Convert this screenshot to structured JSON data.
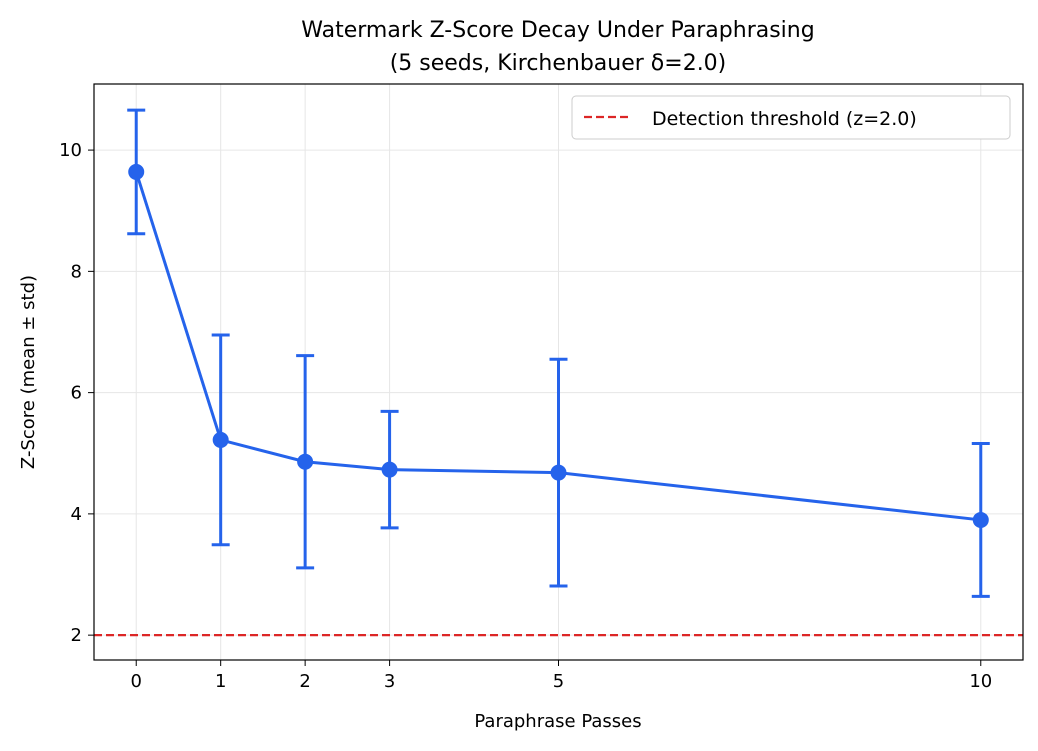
{
  "chart_data": {
    "type": "line",
    "title_line1": "Watermark Z-Score Decay Under Paraphrasing",
    "title_line2": "(5 seeds, Kirchenbauer δ=2.0)",
    "xlabel": "Paraphrase Passes",
    "ylabel": "Z-Score (mean ± std)",
    "x": [
      0,
      1,
      2,
      3,
      5,
      10
    ],
    "x_tick_labels": [
      "0",
      "1",
      "2",
      "3",
      "5",
      "10"
    ],
    "y_ticks": [
      2,
      4,
      6,
      8,
      10
    ],
    "y_tick_labels": [
      "2",
      "4",
      "6",
      "8",
      "10"
    ],
    "xlim": [
      -0.5,
      10.5
    ],
    "ylim": [
      1.59,
      11.09
    ],
    "grid": true,
    "series": [
      {
        "mean": [
          9.64,
          5.22,
          4.86,
          4.73,
          4.68,
          3.9
        ],
        "std": [
          1.02,
          1.73,
          1.75,
          0.96,
          1.87,
          1.26
        ],
        "color": "#2563eb",
        "marker": "circle",
        "error_bars": true
      }
    ],
    "threshold": {
      "value": 2.0,
      "label": "Detection threshold (z=2.0)",
      "color": "#dc2626",
      "style": "dashed"
    },
    "legend_placement": "top-right"
  }
}
